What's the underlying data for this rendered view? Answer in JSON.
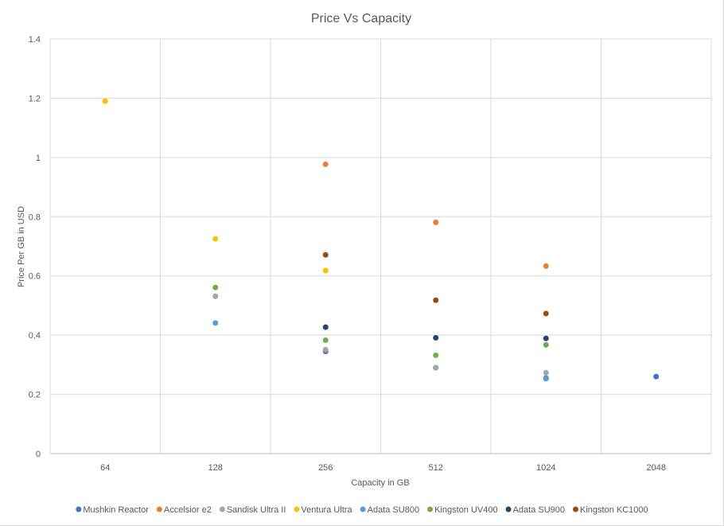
{
  "chart_data": {
    "type": "scatter",
    "title": "Price Vs Capacity",
    "xlabel": "Capacity in GB",
    "ylabel": "Price Per GB in USD",
    "categories": [
      "64",
      "128",
      "256",
      "512",
      "1024",
      "2048"
    ],
    "ylim": [
      0,
      1.4
    ],
    "yticks": [
      "0",
      "0.2",
      "0.4",
      "0.6",
      "0.8",
      "1",
      "1.2",
      "1.4"
    ],
    "grid": true,
    "legend_position": "bottom",
    "series": [
      {
        "name": "Mushkin Reactor",
        "color": "#4472C4",
        "points": [
          {
            "x": "256",
            "y": 0.345
          },
          {
            "x": "512",
            "y": 0.29
          },
          {
            "x": "1024",
            "y": 0.255
          },
          {
            "x": "2048",
            "y": 0.26
          }
        ]
      },
      {
        "name": "Accelsior e2",
        "color": "#ED7D31",
        "points": [
          {
            "x": "256",
            "y": 0.977
          },
          {
            "x": "512",
            "y": 0.781
          },
          {
            "x": "1024",
            "y": 0.633
          }
        ]
      },
      {
        "name": "Sandisk Ultra II",
        "color": "#A5A5A5",
        "points": [
          {
            "x": "128",
            "y": 0.531
          },
          {
            "x": "256",
            "y": 0.351
          },
          {
            "x": "512",
            "y": 0.29
          },
          {
            "x": "1024",
            "y": 0.273
          }
        ]
      },
      {
        "name": "Ventura Ultra",
        "color": "#FFC000",
        "points": [
          {
            "x": "64",
            "y": 1.19
          },
          {
            "x": "128",
            "y": 0.725
          },
          {
            "x": "256",
            "y": 0.618
          }
        ]
      },
      {
        "name": "Adata SU800",
        "color": "#5B9BD5",
        "points": [
          {
            "x": "128",
            "y": 0.441
          },
          {
            "x": "1024",
            "y": 0.253
          }
        ]
      },
      {
        "name": "Kingston UV400",
        "color": "#70AD47",
        "points": [
          {
            "x": "128",
            "y": 0.561
          },
          {
            "x": "256",
            "y": 0.383
          },
          {
            "x": "512",
            "y": 0.332
          },
          {
            "x": "1024",
            "y": 0.367
          }
        ]
      },
      {
        "name": "Adata SU900",
        "color": "#264478",
        "points": [
          {
            "x": "256",
            "y": 0.427
          },
          {
            "x": "512",
            "y": 0.391
          },
          {
            "x": "1024",
            "y": 0.389
          }
        ]
      },
      {
        "name": "Kingston KC1000",
        "color": "#9E480E",
        "points": [
          {
            "x": "256",
            "y": 0.671
          },
          {
            "x": "512",
            "y": 0.518
          },
          {
            "x": "1024",
            "y": 0.473
          }
        ]
      }
    ]
  }
}
